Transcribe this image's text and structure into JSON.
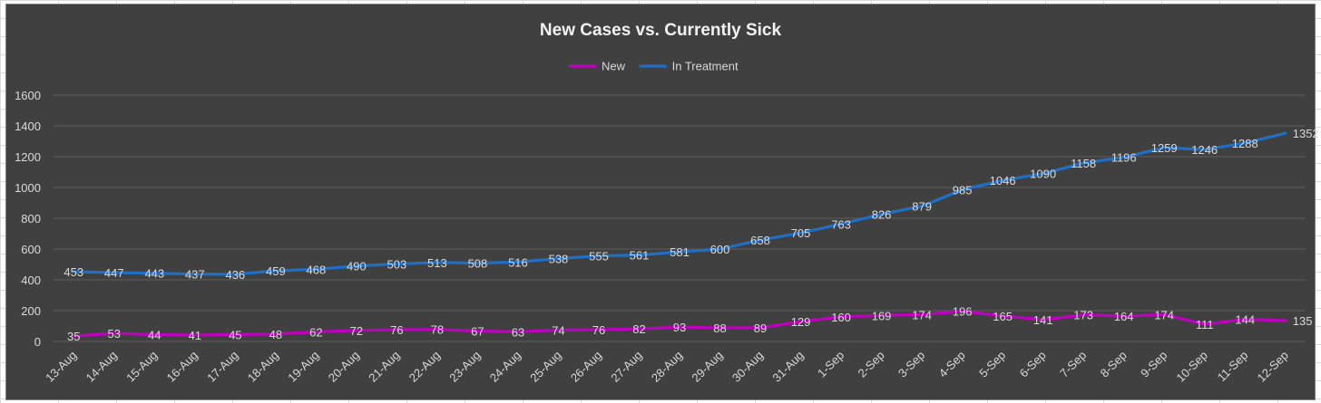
{
  "chart_data": {
    "type": "line",
    "title": "New Cases vs. Currently Sick",
    "xlabel": "",
    "ylabel": "",
    "ylim": [
      0,
      1600
    ],
    "yticks": [
      0,
      200,
      400,
      600,
      800,
      1000,
      1200,
      1400,
      1600
    ],
    "grid": true,
    "legend_position": "top-center",
    "categories": [
      "13-Aug",
      "14-Aug",
      "15-Aug",
      "16-Aug",
      "17-Aug",
      "18-Aug",
      "19-Aug",
      "20-Aug",
      "21-Aug",
      "22-Aug",
      "23-Aug",
      "24-Aug",
      "25-Aug",
      "26-Aug",
      "27-Aug",
      "28-Aug",
      "29-Aug",
      "30-Aug",
      "31-Aug",
      "1-Sep",
      "2-Sep",
      "3-Sep",
      "4-Sep",
      "5-Sep",
      "6-Sep",
      "7-Sep",
      "8-Sep",
      "9-Sep",
      "10-Sep",
      "11-Sep",
      "12-Sep"
    ],
    "series": [
      {
        "name": "New",
        "color": "#c000c0",
        "values": [
          35,
          53,
          44,
          41,
          45,
          48,
          62,
          72,
          76,
          78,
          67,
          63,
          74,
          76,
          82,
          93,
          88,
          89,
          129,
          160,
          169,
          174,
          196,
          165,
          141,
          173,
          164,
          174,
          111,
          144,
          135
        ]
      },
      {
        "name": "In Treatment",
        "color": "#1f6fc6",
        "values": [
          453,
          447,
          443,
          437,
          436,
          459,
          468,
          490,
          503,
          513,
          508,
          516,
          538,
          555,
          561,
          581,
          600,
          658,
          705,
          763,
          826,
          879,
          985,
          1046,
          1090,
          1158,
          1196,
          1259,
          1246,
          1288,
          1352
        ]
      }
    ]
  }
}
